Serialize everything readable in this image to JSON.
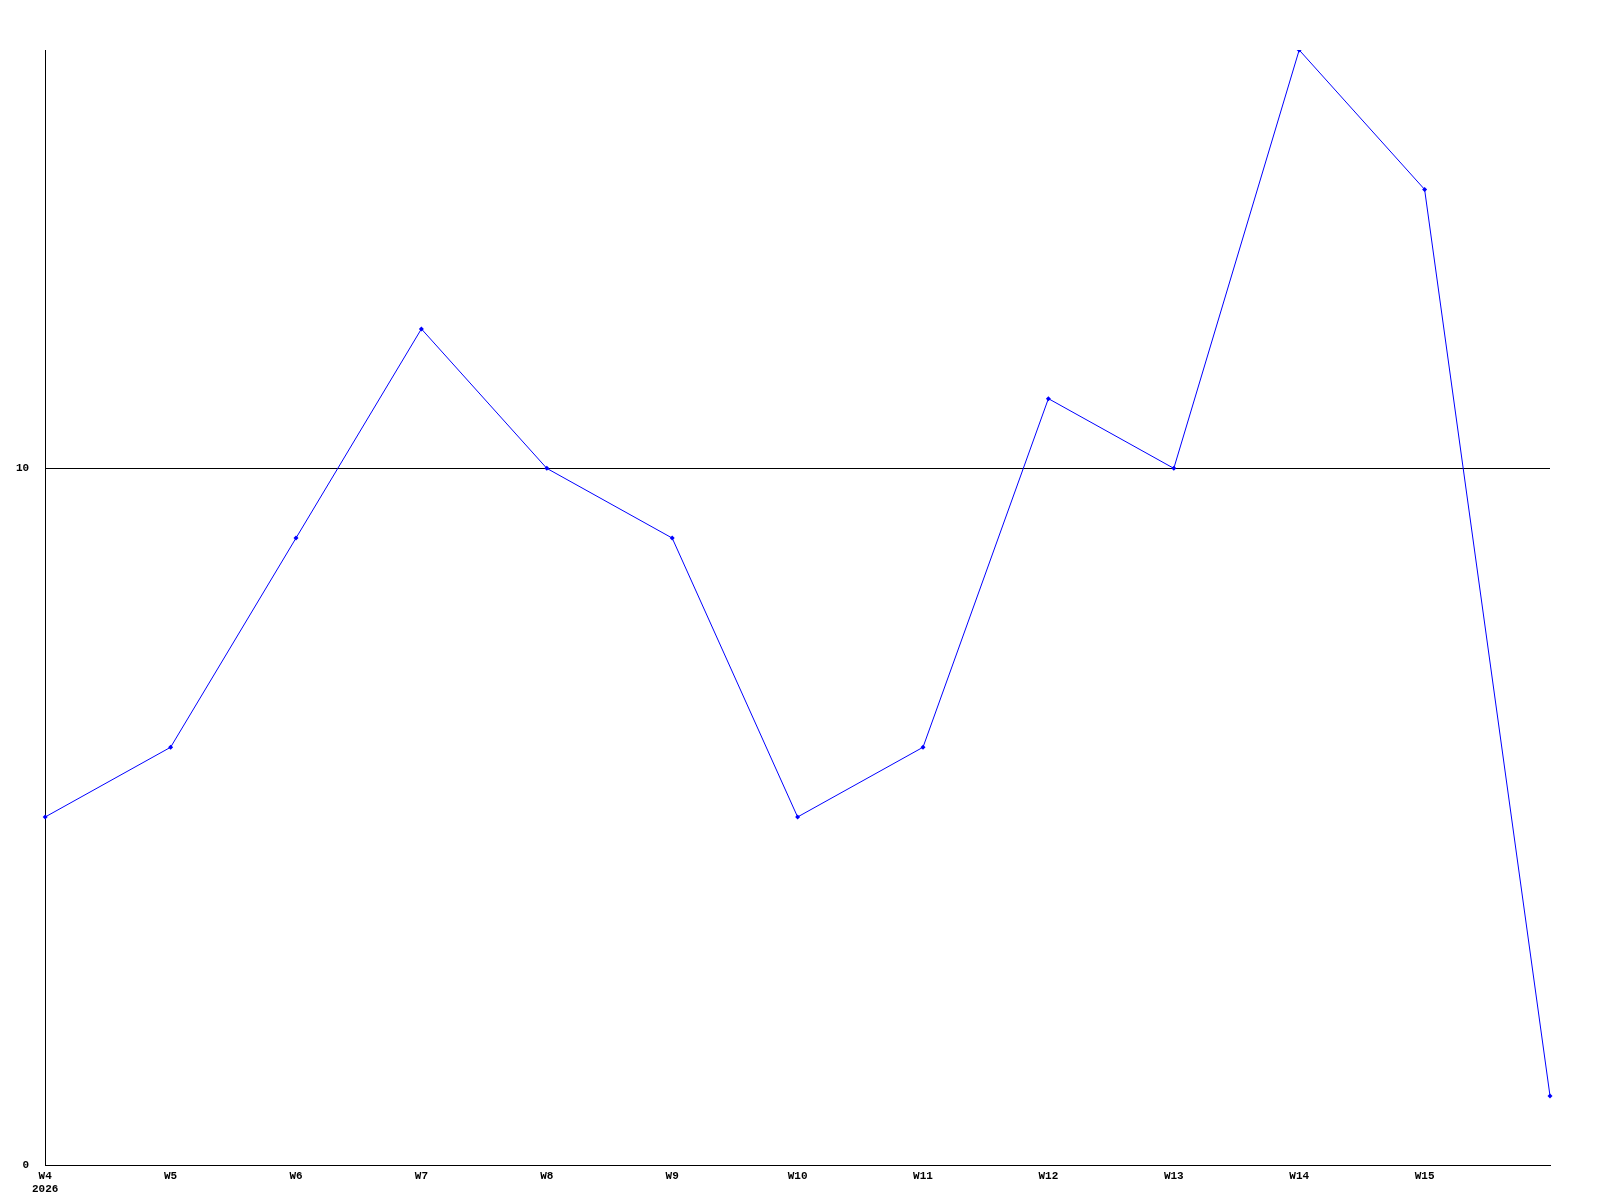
{
  "chart_data": {
    "type": "line",
    "categories": [
      "W4\n2026",
      "W5",
      "W6",
      "W7",
      "W8",
      "W9",
      "W10",
      "W11",
      "W12",
      "W13",
      "W14",
      "W15",
      null
    ],
    "series": [
      {
        "color": "#0000ff",
        "values": [
          5,
          6,
          9,
          12,
          10,
          9,
          5,
          6,
          11,
          10,
          16,
          14,
          1
        ]
      }
    ],
    "ylim": [
      0,
      16
    ],
    "yticks": [
      0,
      10
    ],
    "grid": "y",
    "legend": false,
    "marker": "diamond",
    "line_style": "solid"
  }
}
